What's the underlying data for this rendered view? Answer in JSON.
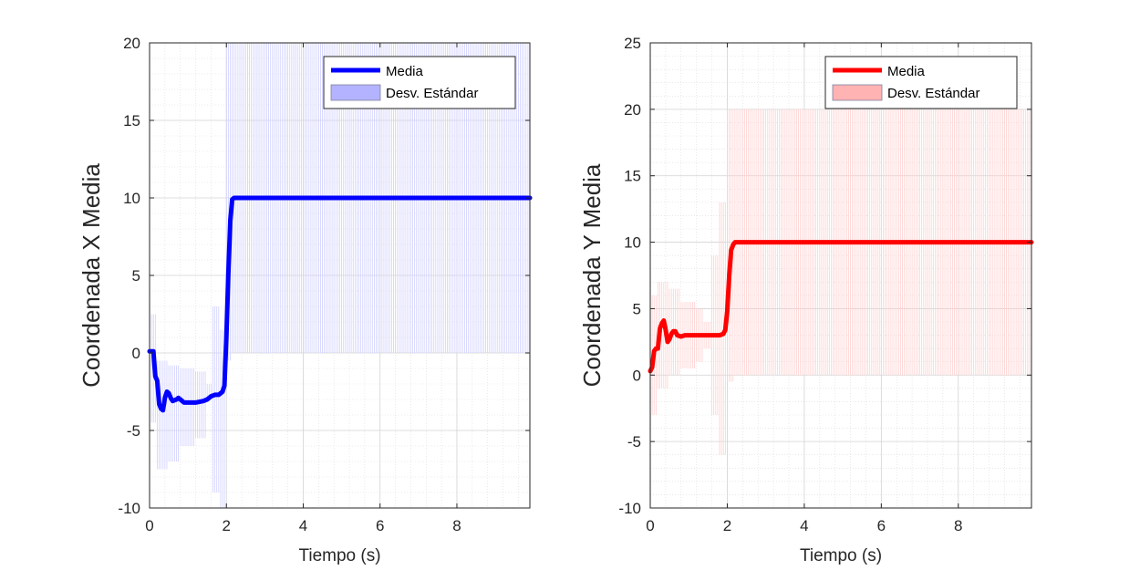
{
  "chart_data": [
    {
      "type": "line",
      "xlabel": "Tiempo (s)",
      "ylabel": "Coordenada X Media",
      "xlim": [
        0,
        9.9
      ],
      "ylim": [
        -10,
        20
      ],
      "xticks": [
        0,
        2,
        4,
        6,
        8
      ],
      "yticks": [
        -10,
        -5,
        0,
        5,
        10,
        15,
        20
      ],
      "grid": true,
      "minor_grid": true,
      "legend_position": "top-right",
      "colors": {
        "line": "#0000ff",
        "band": "#b3b3ff",
        "band_stroke": "#d0d0ff"
      },
      "series": [
        {
          "name": "Media",
          "x": [
            0,
            0.1,
            0.15,
            0.2,
            0.25,
            0.3,
            0.35,
            0.4,
            0.45,
            0.5,
            0.55,
            0.6,
            0.7,
            0.75,
            0.8,
            0.9,
            1.0,
            1.2,
            1.4,
            1.5,
            1.6,
            1.7,
            1.8,
            1.9,
            1.95,
            2.0,
            2.05,
            2.1,
            2.15,
            2.2,
            9.9
          ],
          "y": [
            0.1,
            0.1,
            -1.5,
            -1.8,
            -3.3,
            -3.6,
            -3.7,
            -2.9,
            -2.5,
            -2.6,
            -2.9,
            -3.1,
            -3.0,
            -2.9,
            -3.0,
            -3.2,
            -3.2,
            -3.2,
            -3.1,
            -3.0,
            -2.8,
            -2.7,
            -2.7,
            -2.5,
            -2.1,
            1.0,
            5.0,
            8.5,
            9.9,
            10.0,
            10.0
          ]
        },
        {
          "name": "Desv. Estándar",
          "kind": "band",
          "segments": [
            {
              "x": [
                0,
                0.2
              ],
              "lower": -4.5,
              "upper": 2.5
            },
            {
              "x": [
                0.2,
                0.5
              ],
              "lower": -7.5,
              "upper": -0.5
            },
            {
              "x": [
                0.5,
                0.8
              ],
              "lower": -7.0,
              "upper": -0.8
            },
            {
              "x": [
                0.8,
                1.2
              ],
              "lower": -6.0,
              "upper": -1.0
            },
            {
              "x": [
                1.2,
                1.5
              ],
              "lower": -5.5,
              "upper": -1.2
            },
            {
              "x": [
                1.5,
                1.65
              ],
              "lower": -3.0,
              "upper": -2.0
            },
            {
              "x": [
                1.65,
                1.85
              ],
              "lower": -9.0,
              "upper": 3.0
            },
            {
              "x": [
                1.85,
                2.0
              ],
              "lower": -10.0,
              "upper": 1.5
            },
            {
              "x": [
                2.0,
                2.15
              ],
              "lower": -0.5,
              "upper": 20.0
            },
            {
              "x": [
                2.15,
                9.9
              ],
              "lower": 0.0,
              "upper": 20.0
            }
          ]
        }
      ]
    },
    {
      "type": "line",
      "xlabel": "Tiempo (s)",
      "ylabel": "Coordenada Y Media",
      "xlim": [
        0,
        9.9
      ],
      "ylim": [
        -10,
        25
      ],
      "xticks": [
        0,
        2,
        4,
        6,
        8
      ],
      "yticks": [
        -10,
        -5,
        0,
        5,
        10,
        15,
        20,
        25
      ],
      "grid": true,
      "minor_grid": true,
      "legend_position": "top-right",
      "colors": {
        "line": "#ff0000",
        "band": "#ffb3b3",
        "band_stroke": "#ffd0d0"
      },
      "series": [
        {
          "name": "Media",
          "x": [
            0,
            0.05,
            0.1,
            0.15,
            0.2,
            0.25,
            0.3,
            0.35,
            0.4,
            0.45,
            0.5,
            0.55,
            0.6,
            0.65,
            0.7,
            0.8,
            0.9,
            1.0,
            1.2,
            1.4,
            1.6,
            1.7,
            1.8,
            1.9,
            1.95,
            2.0,
            2.05,
            2.1,
            2.15,
            2.2,
            9.9
          ],
          "y": [
            0.3,
            0.6,
            1.8,
            2.0,
            2.0,
            3.5,
            3.9,
            4.1,
            3.4,
            2.5,
            2.7,
            3.1,
            3.3,
            3.3,
            3.0,
            2.9,
            3.0,
            3.0,
            3.0,
            3.0,
            3.0,
            3.0,
            3.0,
            3.1,
            3.4,
            4.8,
            7.5,
            9.4,
            9.8,
            10.0,
            10.0
          ]
        },
        {
          "name": "Desv. Estándar",
          "kind": "band",
          "segments": [
            {
              "x": [
                0,
                0.2
              ],
              "lower": -3.0,
              "upper": 6.0
            },
            {
              "x": [
                0.2,
                0.5
              ],
              "lower": -1.0,
              "upper": 7.0
            },
            {
              "x": [
                0.5,
                0.8
              ],
              "lower": 0.0,
              "upper": 6.5
            },
            {
              "x": [
                0.8,
                1.2
              ],
              "lower": 0.5,
              "upper": 5.5
            },
            {
              "x": [
                1.2,
                1.4
              ],
              "lower": 1.0,
              "upper": 5.0
            },
            {
              "x": [
                1.4,
                1.6
              ],
              "lower": 2.0,
              "upper": 4.0
            },
            {
              "x": [
                1.6,
                1.8
              ],
              "lower": -3.0,
              "upper": 9.0
            },
            {
              "x": [
                1.8,
                2.0
              ],
              "lower": -6.0,
              "upper": 13.0
            },
            {
              "x": [
                2.0,
                2.2
              ],
              "lower": -0.5,
              "upper": 20.0
            },
            {
              "x": [
                2.2,
                9.9
              ],
              "lower": 0.0,
              "upper": 20.0
            }
          ]
        }
      ]
    }
  ]
}
